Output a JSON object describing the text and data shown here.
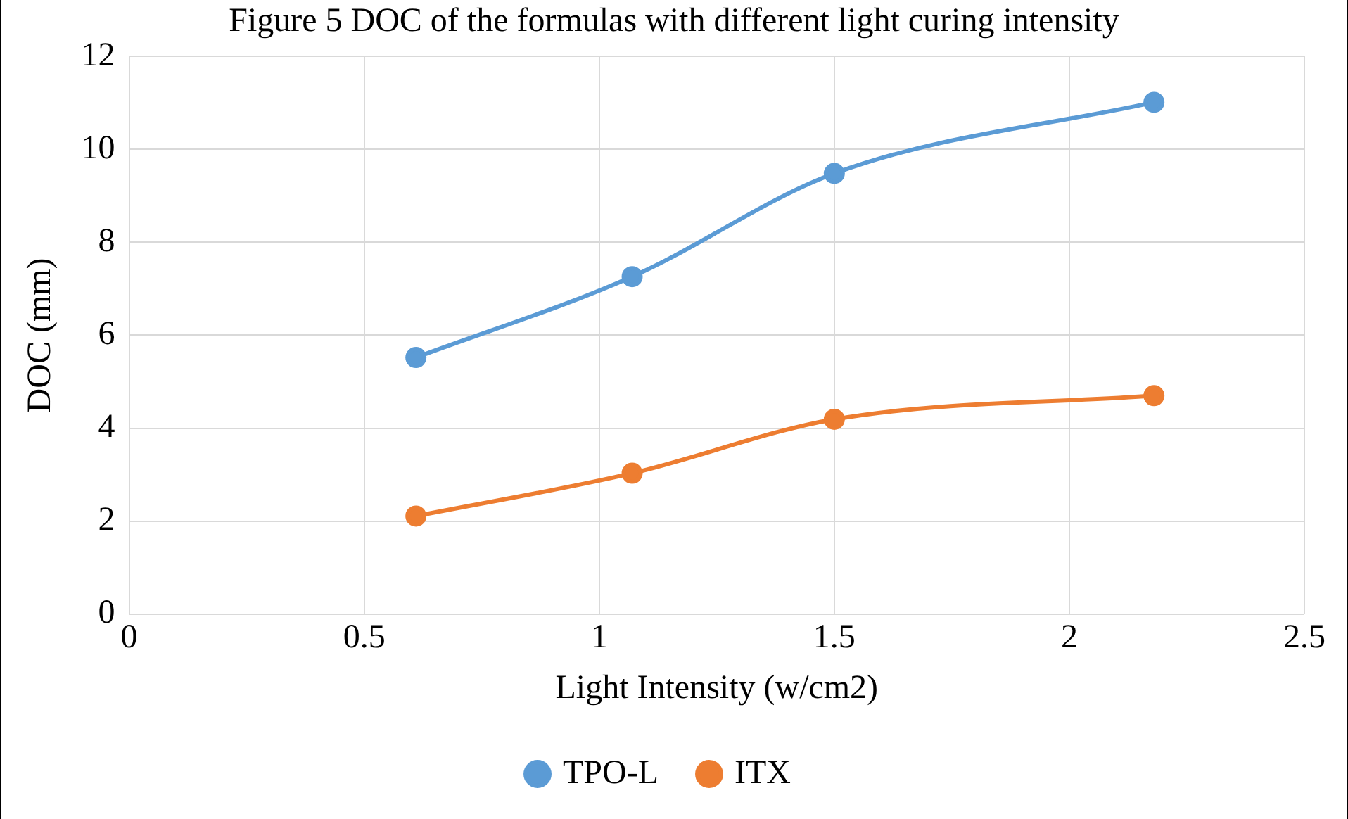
{
  "chart_data": {
    "type": "line",
    "title": "Figure 5 DOC of the formulas with different light curing intensity",
    "xlabel": "Light Intensity (w/cm2)",
    "ylabel": "DOC (mm)",
    "x": [
      0.61,
      1.07,
      1.5,
      2.18
    ],
    "series": [
      {
        "name": "TPO-L",
        "color": "#5b9bd5",
        "values": [
          5.52,
          7.26,
          9.48,
          11.01
        ]
      },
      {
        "name": "ITX",
        "color": "#ed7d31",
        "values": [
          2.11,
          3.03,
          4.19,
          4.7
        ]
      }
    ],
    "xlim": [
      0,
      2.5
    ],
    "xticks": [
      0,
      0.5,
      1,
      1.5,
      2,
      2.5
    ],
    "ylim": [
      0,
      12
    ],
    "yticks": [
      0,
      2,
      4,
      6,
      8,
      10,
      12
    ],
    "grid": true,
    "legend": "bottom",
    "marker": "circle",
    "line_style": "solid"
  }
}
